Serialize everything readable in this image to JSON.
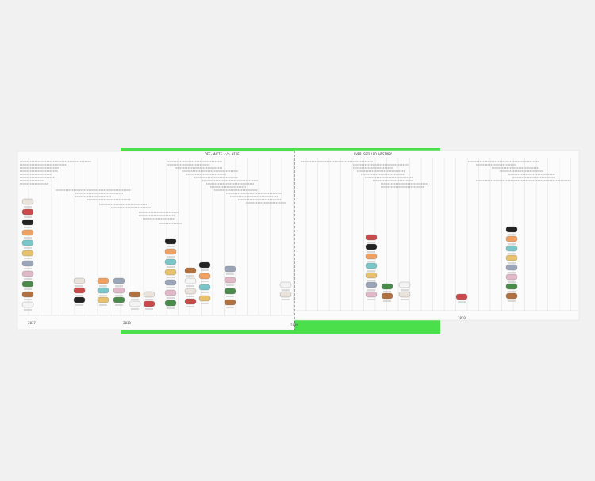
{
  "header": {
    "left_title": "OFF-WHITE c/o NIKE",
    "right_title": "OVER SPILLED HISTORY"
  },
  "timeline": {
    "years": [
      "2017",
      "2018",
      "2019",
      "2020"
    ]
  }
}
